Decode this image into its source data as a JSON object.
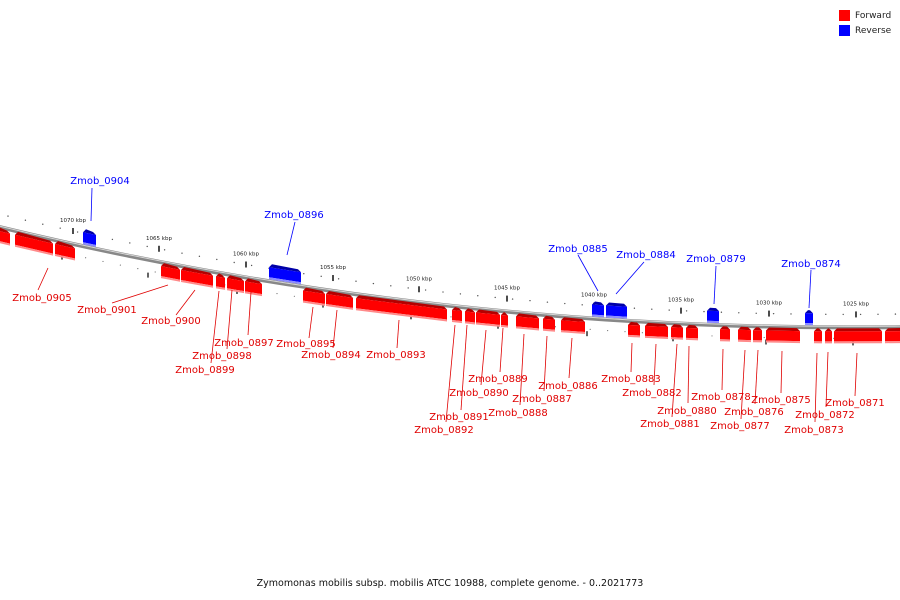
{
  "legend": {
    "forward_label": "Forward",
    "reverse_label": "Reverse",
    "forward_color": "#ff0000",
    "reverse_color": "#0000ff"
  },
  "caption": "Zymomonas mobilis subsp. mobilis ATCC 10988, complete genome. - 0..2021773",
  "scale": {
    "ticks": [
      "1070 kbp",
      "1065 kbp",
      "1060 kbp",
      "1055 kbp",
      "1050 kbp",
      "1045 kbp",
      "1040 kbp",
      "1035 kbp",
      "1030 kbp",
      "1025 kbp"
    ]
  },
  "genes": {
    "reverse": [
      "Zmob_0904",
      "Zmob_0896",
      "Zmob_0885",
      "Zmob_0884",
      "Zmob_0879",
      "Zmob_0874"
    ],
    "forward": [
      "Zmob_0905",
      "Zmob_0901",
      "Zmob_0900",
      "Zmob_0899",
      "Zmob_0898",
      "Zmob_0897",
      "Zmob_0895",
      "Zmob_0894",
      "Zmob_0893",
      "Zmob_0892",
      "Zmob_0891",
      "Zmob_0890",
      "Zmob_0889",
      "Zmob_0888",
      "Zmob_0887",
      "Zmob_0886",
      "Zmob_0883",
      "Zmob_0882",
      "Zmob_0881",
      "Zmob_0880",
      "Zmob_0878",
      "Zmob_0877",
      "Zmob_0876",
      "Zmob_0875",
      "Zmob_0873",
      "Zmob_0872",
      "Zmob_0871"
    ]
  }
}
